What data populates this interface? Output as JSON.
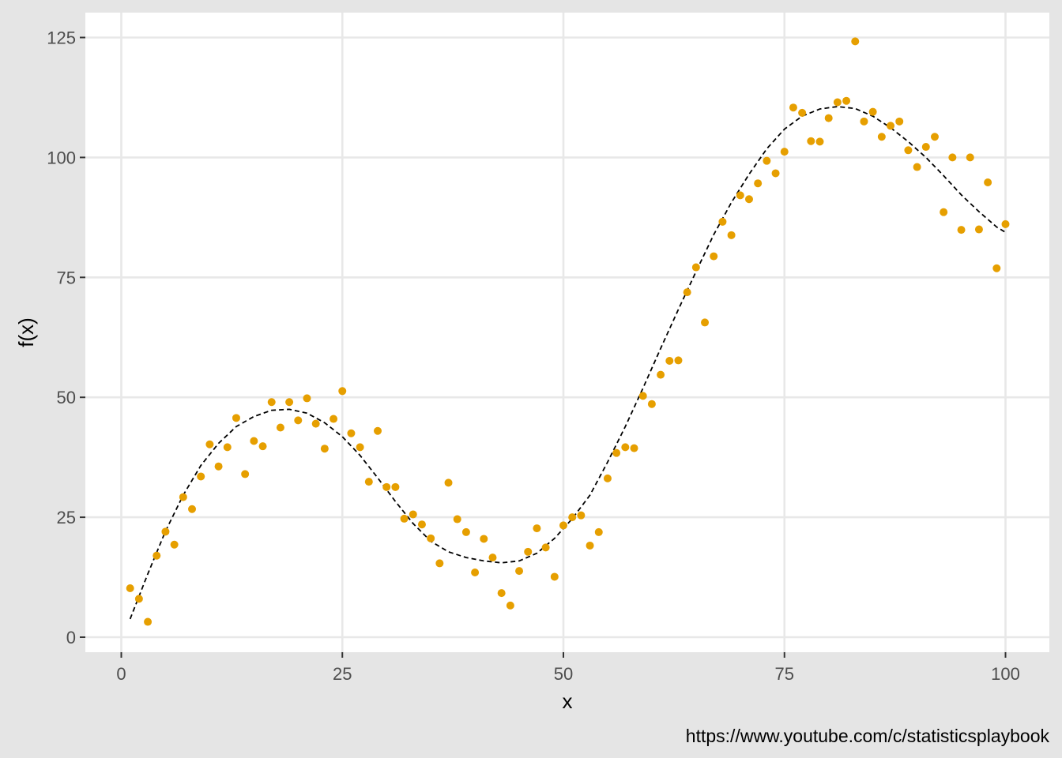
{
  "caption": "https://www.youtube.com/c/statisticsplaybook",
  "colors": {
    "point": "#E69F00",
    "curve": "#000000",
    "panel": "#ffffff",
    "grid": "#e8e8e8",
    "outer": "#e5e5e5"
  },
  "chart_data": {
    "type": "scatter",
    "title": "",
    "xlabel": "x",
    "ylabel": "f(x)",
    "xlim": [
      0,
      100
    ],
    "ylim": [
      0,
      125
    ],
    "xticks": [
      0,
      25,
      50,
      75,
      100
    ],
    "yticks": [
      0,
      25,
      50,
      75,
      100,
      125
    ],
    "grid": true,
    "legend": "none",
    "series": [
      {
        "type": "scatter",
        "x": [
          1,
          2,
          3,
          4,
          5,
          6,
          7,
          8,
          9,
          10,
          11,
          12,
          13,
          14,
          15,
          16,
          17,
          18,
          19,
          20,
          21,
          22,
          23,
          24,
          25,
          26,
          27,
          28,
          29,
          30,
          31,
          32,
          33,
          34,
          35,
          36,
          37,
          38,
          39,
          40,
          41,
          42,
          43,
          44,
          45,
          46,
          47,
          48,
          49,
          50,
          51,
          52,
          53,
          54,
          55,
          56,
          57,
          58,
          59,
          60,
          61,
          62,
          63,
          64,
          65,
          66,
          67,
          68,
          69,
          70,
          71,
          72,
          73,
          74,
          75,
          76,
          77,
          78,
          79,
          80,
          81,
          82,
          83,
          84,
          85,
          86,
          87,
          88,
          89,
          90,
          91,
          92,
          93,
          94,
          95,
          96,
          97,
          98,
          99,
          100
        ],
        "y": [
          10.2,
          8.0,
          3.2,
          17.0,
          22.0,
          19.3,
          29.2,
          26.7,
          33.5,
          40.2,
          35.6,
          39.6,
          45.7,
          34.0,
          40.9,
          39.8,
          49.0,
          43.7,
          49.0,
          45.2,
          49.8,
          44.5,
          39.3,
          45.5,
          51.3,
          42.5,
          39.6,
          32.4,
          43.0,
          31.3,
          31.3,
          24.7,
          25.6,
          23.5,
          20.6,
          15.4,
          32.2,
          24.6,
          21.9,
          13.5,
          20.5,
          16.6,
          9.2,
          6.6,
          13.8,
          17.8,
          22.7,
          18.7,
          12.6,
          23.3,
          25.0,
          25.4,
          19.1,
          21.9,
          33.1,
          38.4,
          39.6,
          39.4,
          50.3,
          48.6,
          54.7,
          57.6,
          57.7,
          71.9,
          77.1,
          65.6,
          79.4,
          86.6,
          83.8,
          92.1,
          91.3,
          94.6,
          99.3,
          96.7,
          101.2,
          110.4,
          109.3,
          103.4,
          103.3,
          108.2,
          111.5,
          111.8,
          124.2,
          107.5,
          109.5,
          104.3,
          106.6,
          107.5,
          101.5,
          98.0,
          102.2,
          104.3,
          88.6,
          100.0,
          84.9,
          100.0,
          85.0,
          94.8,
          76.9,
          86.1
        ]
      },
      {
        "type": "line",
        "style": "dashed",
        "x": [
          1,
          3,
          5,
          7,
          9,
          11,
          13,
          15,
          17,
          19,
          21,
          23,
          25,
          27,
          29,
          31,
          33,
          35,
          37,
          39,
          41,
          43,
          45,
          47,
          49,
          51,
          53,
          55,
          57,
          59,
          61,
          63,
          65,
          67,
          69,
          71,
          73,
          75,
          77,
          79,
          81,
          83,
          85,
          87,
          89,
          91,
          93,
          95,
          97,
          99,
          100
        ],
        "y": [
          3.8,
          13.2,
          22.1,
          29.6,
          35.8,
          40.4,
          43.9,
          46.0,
          47.3,
          47.5,
          46.7,
          44.7,
          41.8,
          37.9,
          33.2,
          28.3,
          23.7,
          20.0,
          17.8,
          16.6,
          15.9,
          15.5,
          15.9,
          17.5,
          20.6,
          24.7,
          29.6,
          36.5,
          43.9,
          51.9,
          60.2,
          68.3,
          76.2,
          83.9,
          90.6,
          96.5,
          101.8,
          105.9,
          108.6,
          110.1,
          110.6,
          110.2,
          108.6,
          106.2,
          103.3,
          100.0,
          96.2,
          92.2,
          88.7,
          85.5,
          84.4
        ]
      }
    ]
  }
}
